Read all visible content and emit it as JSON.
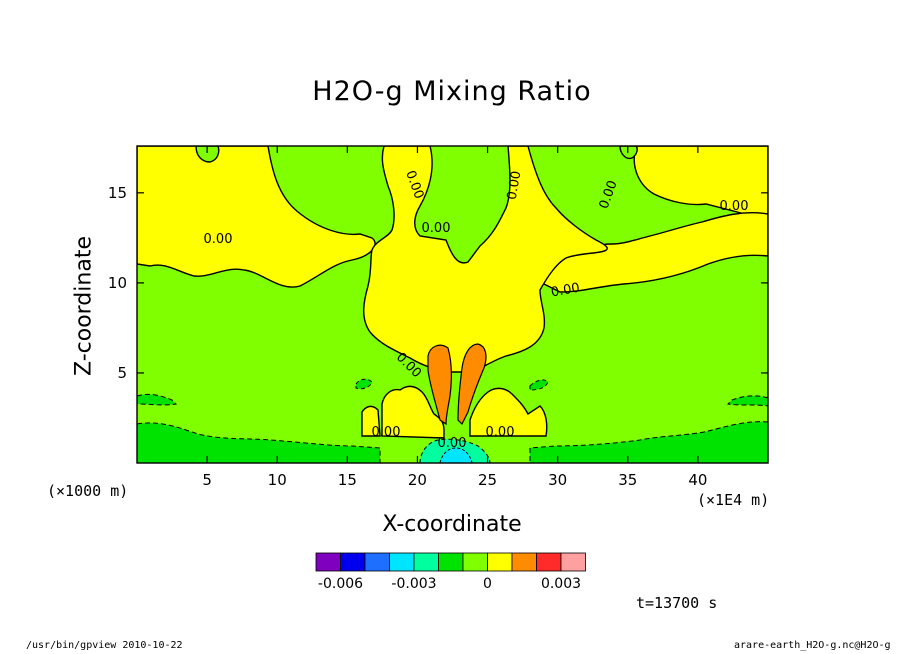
{
  "chart_data": {
    "type": "heatmap",
    "title": "H2O-g Mixing Ratio",
    "xlabel": "X-coordinate",
    "ylabel": "Z-coordinate",
    "x_unit_note": "(×1E4 m)",
    "y_unit_note": "(×1000 m)",
    "xlim": [
      0,
      45
    ],
    "ylim": [
      0,
      17.6
    ],
    "x_ticks": [
      5,
      10,
      15,
      20,
      25,
      30,
      35,
      40
    ],
    "y_ticks": [
      5,
      10,
      15
    ],
    "contour_labels": [
      "0.00",
      "0.00",
      "0.00",
      "0.00",
      "0.00",
      "0.00",
      "0.00",
      "0.00",
      "0.00",
      "0.00",
      "0.00"
    ],
    "colorbar": {
      "colors": [
        "#7f00bf",
        "#0000ee",
        "#1f6fff",
        "#00e5ff",
        "#00ff9f",
        "#00e200",
        "#7fff00",
        "#ffff00",
        "#ff8c00",
        "#ff2a2a",
        "#ffa0a0"
      ],
      "tick_labels": [
        "-0.006",
        "-0.003",
        "0",
        "0.003"
      ],
      "tick_values": [
        -0.006,
        -0.003,
        0,
        0.003
      ]
    },
    "grid": false
  },
  "annotations": {
    "time": "t=13700 s",
    "footer_left": "/usr/bin/gpview   2010-10-22",
    "footer_right": "arare-earth_H2O-g.nc@H2O-g"
  }
}
